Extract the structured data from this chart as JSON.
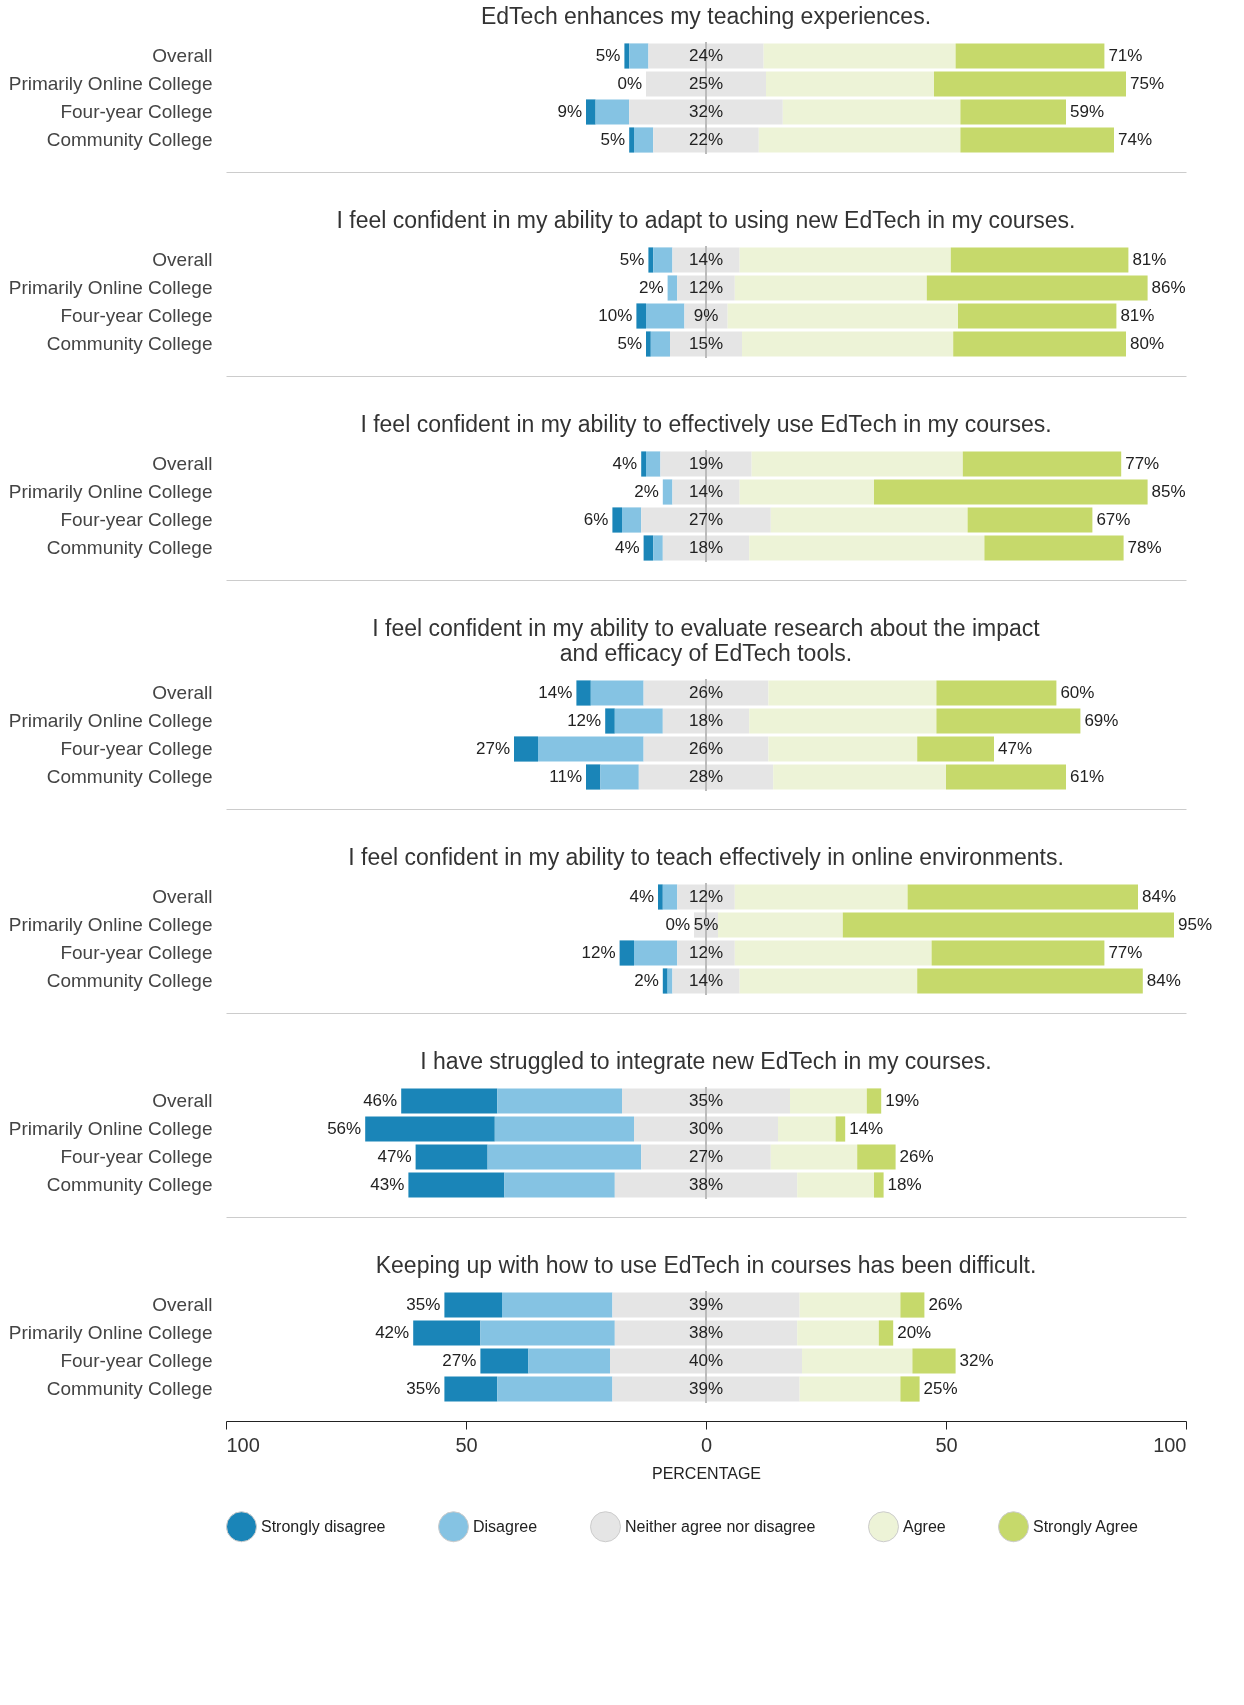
{
  "chart_data": [
    {
      "type": "bar",
      "orientation": "horizontal",
      "title": "EdTech enhances my teaching experiences.",
      "categories": [
        "Overall",
        "Primarily Online College",
        "Four-year College",
        "Community College"
      ],
      "series": [
        {
          "name": "Strongly disagree",
          "color": "#1a85b8",
          "values": [
            1,
            0,
            2,
            1
          ],
          "base": [
            -17,
            null,
            -25,
            -16
          ]
        },
        {
          "name": "Disagree",
          "color": "#85c3e3",
          "values": [
            4,
            0,
            7,
            4
          ],
          "base": [
            -16,
            null,
            -23,
            -15
          ]
        },
        {
          "name": "Neither agree nor disagree",
          "color": "#e5e5e5",
          "values": [
            24,
            25,
            32,
            22
          ],
          "base": [
            -12,
            -12.5,
            -16,
            -11
          ],
          "value_labels": [
            "24%",
            "25%",
            "32%",
            "22%"
          ]
        },
        {
          "name": "Agree",
          "color": "#edf3d7",
          "values": [
            40,
            35,
            37,
            42
          ],
          "base": [
            12,
            12.5,
            16,
            11
          ]
        },
        {
          "name": "Strongly Agree",
          "color": "#c6d96b",
          "values": [
            31,
            40,
            22,
            32
          ],
          "base": [
            52,
            47.5,
            53,
            53
          ]
        }
      ],
      "annotations": [
        {
          "text": "5%",
          "x": -17,
          "y": "Overall"
        },
        {
          "text": "0%",
          "x": -12.5,
          "y": "Primarily Online College"
        },
        {
          "text": "9%",
          "x": -25,
          "y": "Four-year College"
        },
        {
          "text": "5%",
          "x": -16,
          "y": "Community College"
        },
        {
          "text": "71%",
          "x": 83,
          "y": "Overall"
        },
        {
          "text": "75%",
          "x": 87.5,
          "y": "Primarily Online College"
        },
        {
          "text": "59%",
          "x": 75,
          "y": "Four-year College"
        },
        {
          "text": "74%",
          "x": 85,
          "y": "Community College"
        }
      ],
      "xlim": [
        -100,
        100
      ],
      "tick_labels": "y",
      "legend": "bottom",
      "ref_lines": [
        {
          "axis": "x",
          "value": 0,
          "color": "#bbbbbb"
        }
      ]
    },
    {
      "type": "bar",
      "orientation": "horizontal",
      "title": "I feel confident in my ability to adapt to using new EdTech in my courses.",
      "categories": [
        "Overall",
        "Primarily Online College",
        "Four-year College",
        "Community College"
      ],
      "series": [
        {
          "name": "Strongly disagree",
          "color": "#1a85b8",
          "values": [
            1,
            0,
            2,
            1
          ],
          "base": [
            -12,
            null,
            -14.5,
            -12.5
          ]
        },
        {
          "name": "Disagree",
          "color": "#85c3e3",
          "values": [
            4,
            2,
            8,
            4
          ],
          "base": [
            -11,
            -8,
            -12.5,
            -11.5
          ]
        },
        {
          "name": "Neither agree nor disagree",
          "color": "#e5e5e5",
          "values": [
            14,
            12,
            9,
            15
          ],
          "base": [
            -7,
            -6,
            -4.5,
            -7.5
          ],
          "value_labels": [
            "14%",
            "12%",
            "9%",
            "15%"
          ]
        },
        {
          "name": "Agree",
          "color": "#edf3d7",
          "values": [
            44,
            40,
            48,
            44
          ],
          "base": [
            7,
            6,
            4.5,
            7.5
          ]
        },
        {
          "name": "Strongly Agree",
          "color": "#c6d96b",
          "values": [
            37,
            46,
            33,
            36
          ],
          "base": [
            51,
            46,
            52.5,
            51.5
          ]
        }
      ],
      "annotations": [
        {
          "text": "5%",
          "x": -12,
          "y": "Overall"
        },
        {
          "text": "2%",
          "x": -8,
          "y": "Primarily Online College"
        },
        {
          "text": "10%",
          "x": -14.5,
          "y": "Four-year College"
        },
        {
          "text": "5%",
          "x": -12.5,
          "y": "Community College"
        },
        {
          "text": "81%",
          "x": 88,
          "y": "Overall"
        },
        {
          "text": "86%",
          "x": 92,
          "y": "Primarily Online College"
        },
        {
          "text": "81%",
          "x": 85.5,
          "y": "Four-year College"
        },
        {
          "text": "80%",
          "x": 87.5,
          "y": "Community College"
        }
      ],
      "xlim": [
        -100,
        100
      ],
      "tick_labels": "y",
      "legend": "bottom",
      "ref_lines": [
        {
          "axis": "x",
          "value": 0,
          "color": "#bbbbbb"
        }
      ]
    },
    {
      "type": "bar",
      "orientation": "horizontal",
      "title": "I feel confident in my ability to effectively use EdTech in my courses.",
      "categories": [
        "Overall",
        "Primarily Online College",
        "Four-year College",
        "Community College"
      ],
      "series": [
        {
          "name": "Strongly disagree",
          "color": "#1a85b8",
          "values": [
            1,
            0,
            2,
            2
          ],
          "base": [
            -13.5,
            null,
            -19.5,
            -13
          ]
        },
        {
          "name": "Disagree",
          "color": "#85c3e3",
          "values": [
            3,
            2,
            4,
            2
          ],
          "base": [
            -12.5,
            -9,
            -17.5,
            -11
          ]
        },
        {
          "name": "Neither agree nor disagree",
          "color": "#e5e5e5",
          "values": [
            19,
            14,
            27,
            18
          ],
          "base": [
            -9.5,
            -7,
            -13.5,
            -9
          ],
          "value_labels": [
            "19%",
            "14%",
            "27%",
            "18%"
          ]
        },
        {
          "name": "Agree",
          "color": "#edf3d7",
          "values": [
            44,
            28,
            41,
            49
          ],
          "base": [
            9.5,
            7,
            13.5,
            9
          ]
        },
        {
          "name": "Strongly Agree",
          "color": "#c6d96b",
          "values": [
            33,
            57,
            26,
            29
          ],
          "base": [
            53.5,
            35,
            54.5,
            58
          ]
        }
      ],
      "annotations": [
        {
          "text": "4%",
          "x": -13.5,
          "y": "Overall"
        },
        {
          "text": "2%",
          "x": -9,
          "y": "Primarily Online College"
        },
        {
          "text": "6%",
          "x": -19.5,
          "y": "Four-year College"
        },
        {
          "text": "4%",
          "x": -13,
          "y": "Community College"
        },
        {
          "text": "77%",
          "x": 86.5,
          "y": "Overall"
        },
        {
          "text": "85%",
          "x": 92,
          "y": "Primarily Online College"
        },
        {
          "text": "67%",
          "x": 80.5,
          "y": "Four-year College"
        },
        {
          "text": "78%",
          "x": 87,
          "y": "Community College"
        }
      ],
      "xlim": [
        -100,
        100
      ],
      "tick_labels": "y",
      "legend": "bottom",
      "ref_lines": [
        {
          "axis": "x",
          "value": 0,
          "color": "#bbbbbb"
        }
      ]
    },
    {
      "type": "bar",
      "orientation": "horizontal",
      "title": "I feel confident in my ability to evaluate research about the impact\nand efficacy of EdTech tools.",
      "categories": [
        "Overall",
        "Primarily Online College",
        "Four-year College",
        "Community College"
      ],
      "series": [
        {
          "name": "Strongly disagree",
          "color": "#1a85b8",
          "values": [
            3,
            2,
            5,
            3
          ],
          "base": [
            -27,
            -21,
            -40,
            -25
          ]
        },
        {
          "name": "Disagree",
          "color": "#85c3e3",
          "values": [
            11,
            10,
            22,
            8
          ],
          "base": [
            -24,
            -19,
            -35,
            -22
          ]
        },
        {
          "name": "Neither agree nor disagree",
          "color": "#e5e5e5",
          "values": [
            26,
            18,
            26,
            28
          ],
          "base": [
            -13,
            -9,
            -13,
            -14
          ],
          "value_labels": [
            "26%",
            "18%",
            "26%",
            "28%"
          ]
        },
        {
          "name": "Agree",
          "color": "#edf3d7",
          "values": [
            35,
            39,
            31,
            36
          ],
          "base": [
            13,
            9,
            13,
            14
          ]
        },
        {
          "name": "Strongly Agree",
          "color": "#c6d96b",
          "values": [
            25,
            30,
            16,
            25
          ],
          "base": [
            48,
            48,
            44,
            50
          ]
        }
      ],
      "annotations": [
        {
          "text": "14%",
          "x": -27,
          "y": "Overall"
        },
        {
          "text": "12%",
          "x": -21,
          "y": "Primarily Online College"
        },
        {
          "text": "27%",
          "x": -40,
          "y": "Four-year College"
        },
        {
          "text": "11%",
          "x": -25,
          "y": "Community College"
        },
        {
          "text": "60%",
          "x": 73,
          "y": "Overall"
        },
        {
          "text": "69%",
          "x": 78,
          "y": "Primarily Online College"
        },
        {
          "text": "47%",
          "x": 60,
          "y": "Four-year College"
        },
        {
          "text": "61%",
          "x": 75,
          "y": "Community College"
        }
      ],
      "xlim": [
        -100,
        100
      ],
      "tick_labels": "y",
      "legend": "bottom",
      "ref_lines": [
        {
          "axis": "x",
          "value": 0,
          "color": "#bbbbbb"
        }
      ]
    },
    {
      "type": "bar",
      "orientation": "horizontal",
      "title": "I feel confident in my ability to teach effectively in online environments.",
      "categories": [
        "Overall",
        "Primarily Online College",
        "Four-year College",
        "Community College"
      ],
      "series": [
        {
          "name": "Strongly disagree",
          "color": "#1a85b8",
          "values": [
            1,
            0,
            3,
            1
          ],
          "base": [
            -10,
            null,
            -18,
            -9
          ]
        },
        {
          "name": "Disagree",
          "color": "#85c3e3",
          "values": [
            3,
            0,
            9,
            1
          ],
          "base": [
            -9,
            null,
            -15,
            -8
          ]
        },
        {
          "name": "Neither agree nor disagree",
          "color": "#e5e5e5",
          "values": [
            12,
            5,
            12,
            14
          ],
          "base": [
            -6,
            -2.5,
            -6,
            -7
          ],
          "value_labels": [
            "12%",
            "5%",
            "12%",
            "14%"
          ]
        },
        {
          "name": "Agree",
          "color": "#edf3d7",
          "values": [
            36,
            26,
            41,
            37
          ],
          "base": [
            6,
            2.5,
            6,
            7
          ]
        },
        {
          "name": "Strongly Agree",
          "color": "#c6d96b",
          "values": [
            48,
            69,
            36,
            47
          ],
          "base": [
            42,
            28.5,
            47,
            44
          ]
        }
      ],
      "annotations": [
        {
          "text": "4%",
          "x": -10,
          "y": "Overall"
        },
        {
          "text": "0%",
          "x": -2.5,
          "y": "Primarily Online College"
        },
        {
          "text": "12%",
          "x": -18,
          "y": "Four-year College"
        },
        {
          "text": "2%",
          "x": -9,
          "y": "Community College"
        },
        {
          "text": "84%",
          "x": 90,
          "y": "Overall"
        },
        {
          "text": "95%",
          "x": 97.5,
          "y": "Primarily Online College"
        },
        {
          "text": "77%",
          "x": 83,
          "y": "Four-year College"
        },
        {
          "text": "84%",
          "x": 91,
          "y": "Community College"
        }
      ],
      "xlim": [
        -100,
        100
      ],
      "tick_labels": "y",
      "legend": "bottom",
      "ref_lines": [
        {
          "axis": "x",
          "value": 0,
          "color": "#bbbbbb"
        }
      ]
    },
    {
      "type": "bar",
      "orientation": "horizontal",
      "title": "I have struggled to integrate new EdTech in my courses.",
      "categories": [
        "Overall",
        "Primarily Online College",
        "Four-year College",
        "Community College"
      ],
      "series": [
        {
          "name": "Strongly disagree",
          "color": "#1a85b8",
          "values": [
            20,
            27,
            15,
            20
          ],
          "base": [
            -63.5,
            -71,
            -60.5,
            -62
          ]
        },
        {
          "name": "Disagree",
          "color": "#85c3e3",
          "values": [
            26,
            29,
            32,
            23
          ],
          "base": [
            -43.5,
            -44,
            -45.5,
            -42
          ]
        },
        {
          "name": "Neither agree nor disagree",
          "color": "#e5e5e5",
          "values": [
            35,
            30,
            27,
            38
          ],
          "base": [
            -17.5,
            -15,
            -13.5,
            -19
          ],
          "value_labels": [
            "35%",
            "30%",
            "27%",
            "38%"
          ]
        },
        {
          "name": "Agree",
          "color": "#edf3d7",
          "values": [
            16,
            12,
            18,
            16
          ],
          "base": [
            17.5,
            15,
            13.5,
            19
          ]
        },
        {
          "name": "Strongly Agree",
          "color": "#c6d96b",
          "values": [
            3,
            2,
            8,
            2
          ],
          "base": [
            33.5,
            27,
            31.5,
            35
          ]
        }
      ],
      "annotations": [
        {
          "text": "46%",
          "x": -63.5,
          "y": "Overall"
        },
        {
          "text": "56%",
          "x": -71,
          "y": "Primarily Online College"
        },
        {
          "text": "47%",
          "x": -60.5,
          "y": "Four-year College"
        },
        {
          "text": "43%",
          "x": -62,
          "y": "Community College"
        },
        {
          "text": "19%",
          "x": 36.5,
          "y": "Overall"
        },
        {
          "text": "14%",
          "x": 29,
          "y": "Primarily Online College"
        },
        {
          "text": "26%",
          "x": 39.5,
          "y": "Four-year College"
        },
        {
          "text": "18%",
          "x": 37,
          "y": "Community College"
        }
      ],
      "xlim": [
        -100,
        100
      ],
      "tick_labels": "y",
      "legend": "bottom",
      "ref_lines": [
        {
          "axis": "x",
          "value": 0,
          "color": "#bbbbbb"
        }
      ]
    },
    {
      "type": "bar",
      "orientation": "horizontal",
      "title": "Keeping up with how to use EdTech in courses has been difficult.",
      "categories": [
        "Overall",
        "Primarily Online College",
        "Four-year College",
        "Community College"
      ],
      "series": [
        {
          "name": "Strongly disagree",
          "color": "#1a85b8",
          "values": [
            12,
            14,
            10,
            11
          ],
          "base": [
            -54.5,
            -61,
            -47,
            -54.5
          ]
        },
        {
          "name": "Disagree",
          "color": "#85c3e3",
          "values": [
            23,
            28,
            17,
            24
          ],
          "base": [
            -42.5,
            -47,
            -37,
            -43.5
          ]
        },
        {
          "name": "Neither agree nor disagree",
          "color": "#e5e5e5",
          "values": [
            39,
            38,
            40,
            39
          ],
          "base": [
            -19.5,
            -19,
            -20,
            -19.5
          ],
          "value_labels": [
            "39%",
            "38%",
            "40%",
            "39%"
          ]
        },
        {
          "name": "Agree",
          "color": "#edf3d7",
          "values": [
            21,
            17,
            23,
            21
          ],
          "base": [
            19.5,
            19,
            20,
            19.5
          ]
        },
        {
          "name": "Strongly Agree",
          "color": "#c6d96b",
          "values": [
            5,
            3,
            9,
            4
          ],
          "base": [
            40.5,
            36,
            43,
            40.5
          ]
        }
      ],
      "annotations": [
        {
          "text": "35%",
          "x": -54.5,
          "y": "Overall"
        },
        {
          "text": "42%",
          "x": -61,
          "y": "Primarily Online College"
        },
        {
          "text": "27%",
          "x": -47,
          "y": "Four-year College"
        },
        {
          "text": "35%",
          "x": -54.5,
          "y": "Community College"
        },
        {
          "text": "26%",
          "x": 45.5,
          "y": "Overall"
        },
        {
          "text": "20%",
          "x": 39,
          "y": "Primarily Online College"
        },
        {
          "text": "32%",
          "x": 52,
          "y": "Four-year College"
        },
        {
          "text": "25%",
          "x": 44.5,
          "y": "Community College"
        }
      ],
      "xlim": [
        -100,
        100
      ],
      "xticks": [
        {
          "value": -100,
          "label": "100"
        },
        {
          "value": -50,
          "label": "50"
        },
        0,
        50,
        100
      ],
      "xlabel": "PERCENTAGE",
      "legend": "bottom",
      "ref_lines": [
        {
          "axis": "x",
          "value": 0,
          "color": "#bbbbbb"
        }
      ]
    }
  ]
}
